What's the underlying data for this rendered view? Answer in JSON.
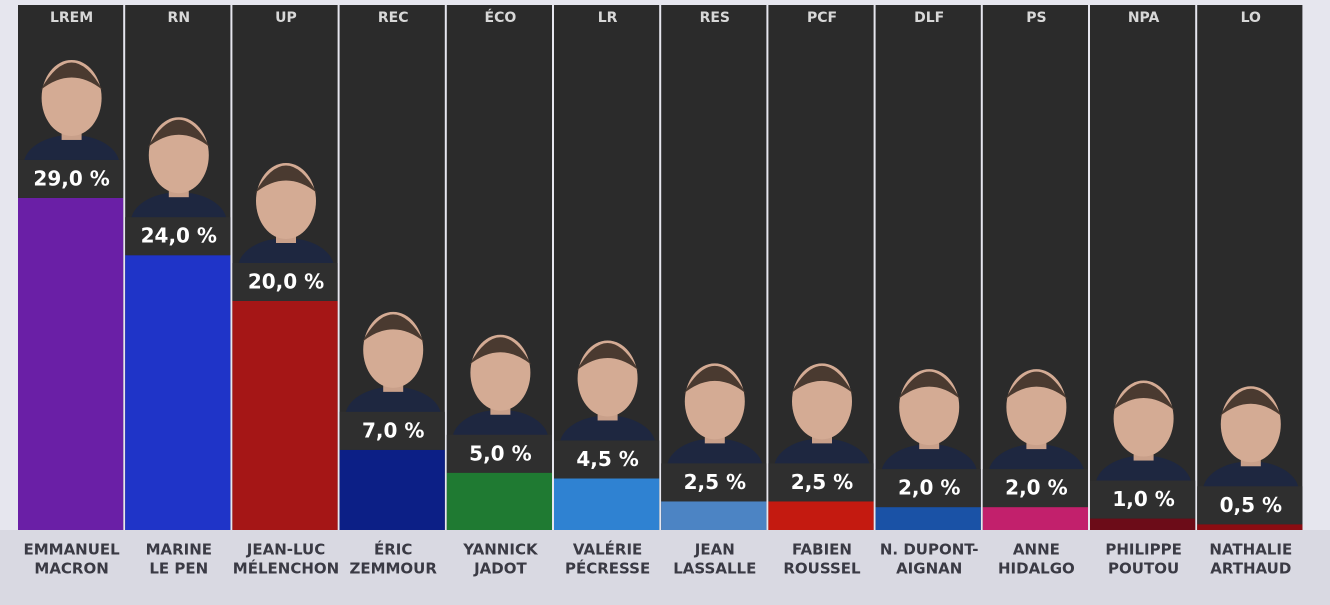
{
  "chart_data": {
    "type": "bar",
    "categories": [
      "LREM",
      "RN",
      "UP",
      "REC",
      "ÉCO",
      "LR",
      "RES",
      "PCF",
      "DLF",
      "PS",
      "NPA",
      "LO"
    ],
    "candidates": [
      [
        "EMMANUEL",
        "MACRON"
      ],
      [
        "MARINE",
        "LE PEN"
      ],
      [
        "JEAN-LUC",
        "MÉLENCHON"
      ],
      [
        "ÉRIC",
        "ZEMMOUR"
      ],
      [
        "YANNICK",
        "JADOT"
      ],
      [
        "VALÉRIE",
        "PÉCRESSE"
      ],
      [
        "JEAN",
        "LASSALLE"
      ],
      [
        "FABIEN",
        "ROUSSEL"
      ],
      [
        "N. DUPONT-",
        "AIGNAN"
      ],
      [
        "ANNE",
        "HIDALGO"
      ],
      [
        "PHILIPPE",
        "POUTOU"
      ],
      [
        "NATHALIE",
        "ARTHAUD"
      ]
    ],
    "values": [
      29.0,
      24.0,
      20.0,
      7.0,
      5.0,
      4.5,
      2.5,
      2.5,
      2.0,
      2.0,
      1.0,
      0.5
    ],
    "value_labels": [
      "29,0 %",
      "24,0 %",
      "20,0 %",
      "7,0 %",
      "5,0 %",
      "4,5 %",
      "2,5 %",
      "2,5 %",
      "2,0 %",
      "2,0 %",
      "1,0 %",
      "0,5 %"
    ],
    "colors": [
      "#6a1fa6",
      "#1f34c8",
      "#a51616",
      "#0c1f86",
      "#1f7a32",
      "#2f82d2",
      "#4c84c4",
      "#c41a10",
      "#1a52a6",
      "#c2206c",
      "#6c0c18",
      "#8c0c12"
    ]
  }
}
